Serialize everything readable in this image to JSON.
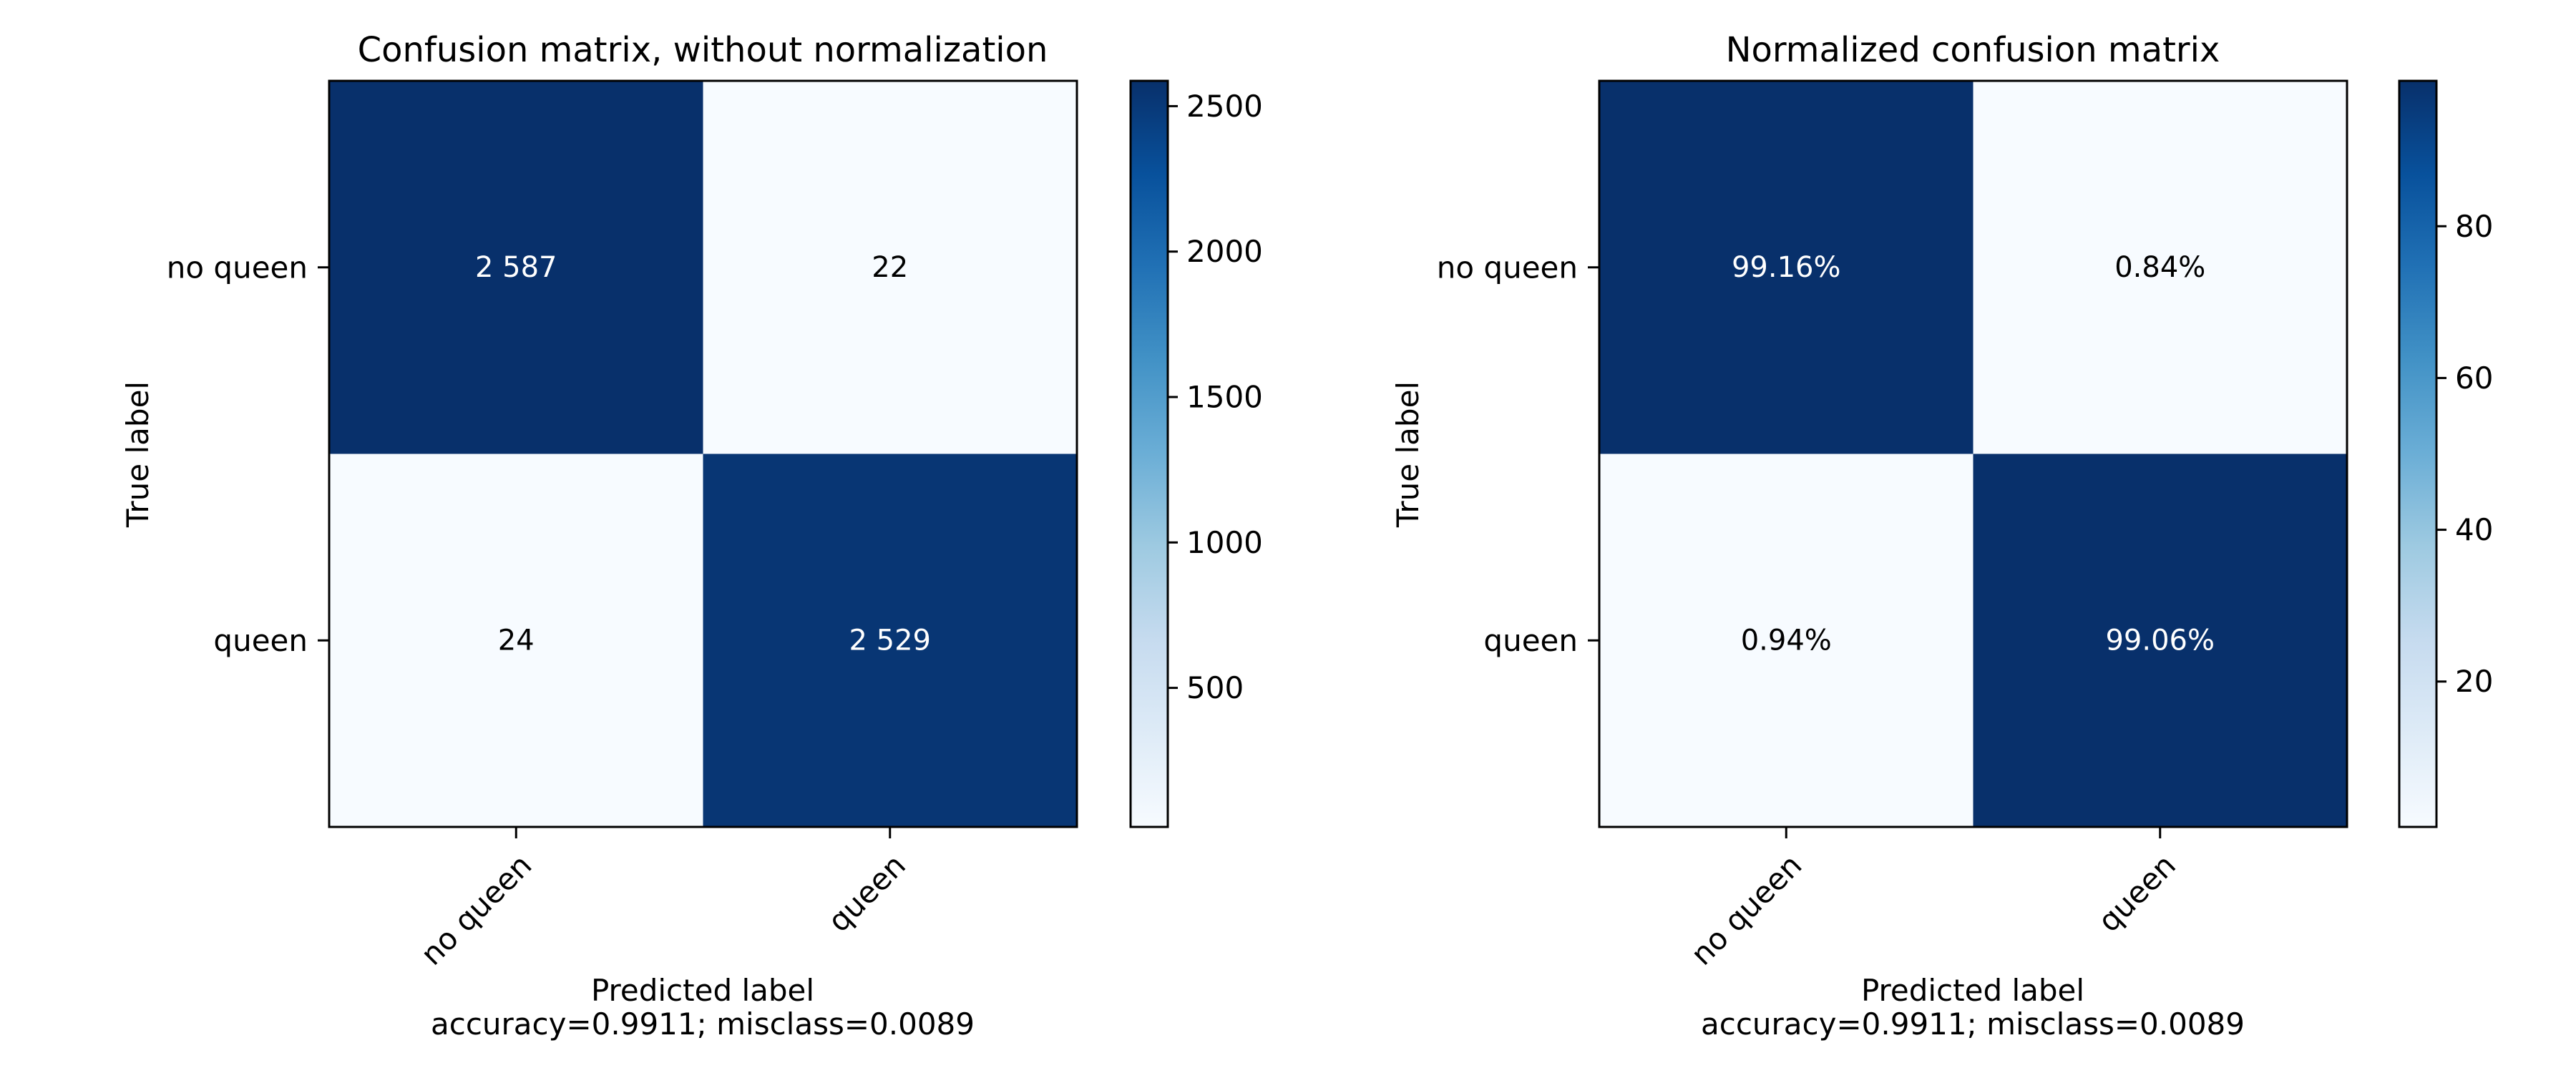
{
  "chart_data": [
    {
      "type": "heatmap",
      "title": "Confusion matrix, without normalization",
      "xlabel": "Predicted label",
      "xlabel_note": "accuracy=0.9911; misclass=0.0089",
      "ylabel": "True label",
      "x_categories": [
        "no queen",
        "queen"
      ],
      "y_categories": [
        "no queen",
        "queen"
      ],
      "values": [
        [
          2587,
          22
        ],
        [
          24,
          2529
        ]
      ],
      "cell_labels": [
        [
          "2 587",
          "22"
        ],
        [
          "24",
          "2 529"
        ]
      ],
      "colormap": "Blues",
      "color_range": [
        22,
        2587
      ],
      "colorbar_ticks": [
        500,
        1000,
        1500,
        2000,
        2500
      ],
      "colorbar_tick_labels": [
        "500",
        "1000",
        "1500",
        "2000",
        "2500"
      ]
    },
    {
      "type": "heatmap",
      "title": "Normalized confusion matrix",
      "xlabel": "Predicted label",
      "xlabel_note": "accuracy=0.9911; misclass=0.0089",
      "ylabel": "True label",
      "x_categories": [
        "no queen",
        "queen"
      ],
      "y_categories": [
        "no queen",
        "queen"
      ],
      "values": [
        [
          99.16,
          0.84
        ],
        [
          0.94,
          99.06
        ]
      ],
      "cell_labels": [
        [
          "99.16%",
          "0.84%"
        ],
        [
          "0.94%",
          "99.06%"
        ]
      ],
      "colormap": "Blues",
      "color_range": [
        0.84,
        99.16
      ],
      "colorbar_ticks": [
        20,
        40,
        60,
        80
      ],
      "colorbar_tick_labels": [
        "20",
        "40",
        "60",
        "80"
      ]
    }
  ]
}
